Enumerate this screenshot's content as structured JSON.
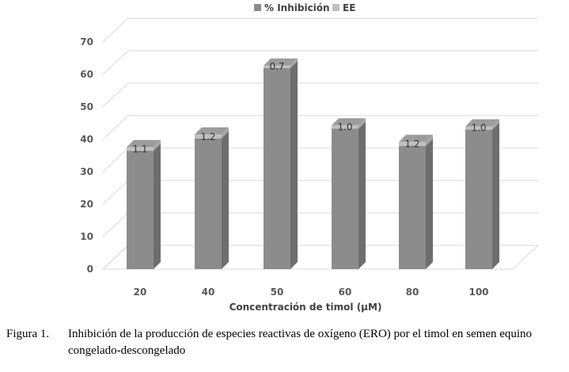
{
  "chart_data": {
    "type": "bar",
    "categories": [
      "20",
      "40",
      "50",
      "60",
      "80",
      "100"
    ],
    "series": [
      {
        "name": "% Inhibición",
        "values": [
          36.5,
          40.3,
          62.0,
          43.3,
          38.0,
          43.0
        ],
        "color": "#8c8c8c"
      },
      {
        "name": "EE",
        "values": [
          1.1,
          1.2,
          0.7,
          1.0,
          1.2,
          1.0
        ],
        "color": "#c0c0c0"
      }
    ],
    "data_labels": [
      "1.1",
      "1.2",
      "0.7",
      "1.0",
      "1.2",
      "1.0"
    ],
    "xlabel": "Concentración de timol (µM)",
    "ylabel": "",
    "ylim": [
      0,
      70
    ],
    "yticks": [
      0,
      10,
      20,
      30,
      40,
      50,
      60,
      70
    ],
    "stacked": true,
    "style": "3d-column",
    "grid": true,
    "legend_position": "top"
  },
  "caption": {
    "number": "Figura 1.",
    "text": "Inhibición de la producción de especies reactivas de oxígeno (ERO) por el timol en semen equino congelado-descongelado"
  }
}
